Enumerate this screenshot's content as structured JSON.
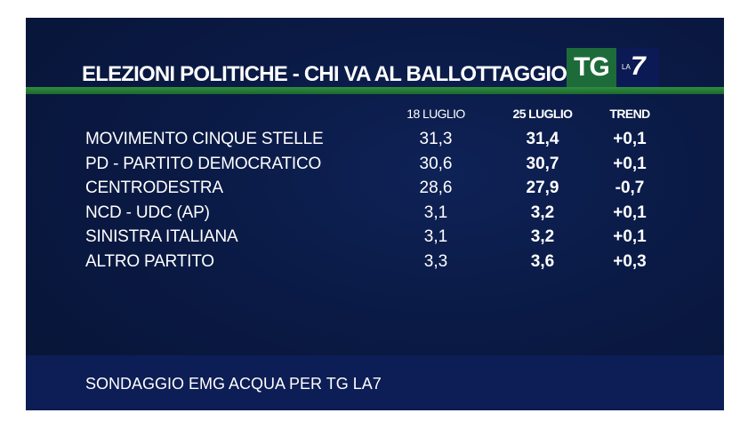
{
  "title": "ELEZIONI POLITICHE - CHI VA AL BALLOTTAGGIO?",
  "logo": {
    "tg": "TG",
    "la": "LA",
    "seven": "7"
  },
  "footer": "SONDAGGIO EMG ACQUA PER TG LA7",
  "colors": {
    "background": "#0a1a45",
    "rule": "#2f8d3f",
    "logo_green": "#1e6b3a",
    "footer": "#0d1d55"
  },
  "chart_data": {
    "type": "table",
    "columns": [
      "18 LUGLIO",
      "25 LUGLIO",
      "TREND"
    ],
    "rows": [
      {
        "party": "MOVIMENTO CINQUE STELLE",
        "values": [
          "31,3",
          "31,4",
          "+0,1"
        ]
      },
      {
        "party": "PD - PARTITO DEMOCRATICO",
        "values": [
          "30,6",
          "30,7",
          "+0,1"
        ]
      },
      {
        "party": "CENTRODESTRA",
        "values": [
          "28,6",
          "27,9",
          "-0,7"
        ]
      },
      {
        "party": "NCD - UDC (AP)",
        "values": [
          "3,1",
          "3,2",
          "+0,1"
        ]
      },
      {
        "party": "SINISTRA ITALIANA",
        "values": [
          "3,1",
          "3,2",
          "+0,1"
        ]
      },
      {
        "party": "ALTRO PARTITO",
        "values": [
          "3,3",
          "3,6",
          "+0,3"
        ]
      }
    ]
  }
}
